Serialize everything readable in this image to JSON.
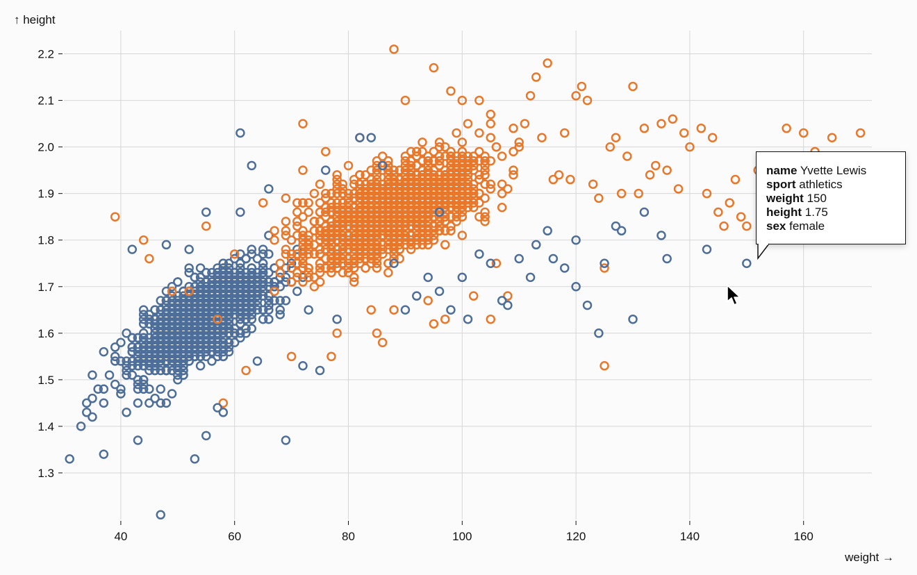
{
  "chart_data": {
    "type": "scatter",
    "xlabel": "weight →",
    "ylabel": "↑ height",
    "xlim": [
      30,
      172
    ],
    "ylim": [
      1.2,
      2.25
    ],
    "xticks": [
      40,
      60,
      80,
      100,
      120,
      140,
      160
    ],
    "yticks": [
      1.3,
      1.4,
      1.5,
      1.6,
      1.7,
      1.8,
      1.9,
      2.0,
      2.1,
      2.2
    ],
    "grid": true,
    "marker": "hollow-circle",
    "series": [
      {
        "color": "#4e6e9a",
        "points": [
          [
            31,
            1.33
          ],
          [
            33,
            1.4
          ],
          [
            34,
            1.43
          ],
          [
            35,
            1.42
          ],
          [
            34,
            1.45
          ],
          [
            35,
            1.46
          ],
          [
            35,
            1.51
          ],
          [
            36,
            1.48
          ],
          [
            37,
            1.45
          ],
          [
            37,
            1.48
          ],
          [
            37,
            1.34
          ],
          [
            39,
            1.49
          ],
          [
            39,
            1.54
          ],
          [
            40,
            1.47
          ],
          [
            41,
            1.43
          ],
          [
            42,
            1.78
          ],
          [
            43,
            1.37
          ],
          [
            43,
            1.45
          ],
          [
            44,
            1.48
          ],
          [
            45,
            1.45
          ],
          [
            46,
            1.46
          ],
          [
            47,
            1.45
          ],
          [
            48,
            1.45
          ],
          [
            49,
            1.47
          ],
          [
            48,
            1.79
          ],
          [
            52,
            1.78
          ],
          [
            53,
            1.33
          ],
          [
            55,
            1.38
          ],
          [
            55,
            1.86
          ],
          [
            57,
            1.44
          ],
          [
            58,
            1.43
          ],
          [
            61,
            1.86
          ],
          [
            61,
            2.03
          ],
          [
            63,
            1.96
          ],
          [
            63,
            1.71
          ],
          [
            64,
            1.54
          ],
          [
            66,
            1.91
          ],
          [
            69,
            1.37
          ],
          [
            47,
            1.21
          ],
          [
            72,
            1.53
          ],
          [
            73,
            1.65
          ],
          [
            75,
            1.52
          ],
          [
            76,
            1.95
          ],
          [
            78,
            1.63
          ],
          [
            82,
            2.02
          ],
          [
            84,
            2.02
          ],
          [
            86,
            1.96
          ],
          [
            88,
            1.75
          ],
          [
            90,
            1.65
          ],
          [
            92,
            1.68
          ],
          [
            94,
            1.72
          ],
          [
            96,
            1.86
          ],
          [
            96,
            1.69
          ],
          [
            98,
            1.65
          ],
          [
            100,
            1.72
          ],
          [
            101,
            1.63
          ],
          [
            103,
            1.77
          ],
          [
            105,
            1.75
          ],
          [
            107,
            1.67
          ],
          [
            108,
            1.66
          ],
          [
            110,
            1.76
          ],
          [
            112,
            1.72
          ],
          [
            113,
            1.79
          ],
          [
            115,
            1.82
          ],
          [
            116,
            1.76
          ],
          [
            118,
            1.74
          ],
          [
            120,
            1.7
          ],
          [
            120,
            1.8
          ],
          [
            122,
            1.66
          ],
          [
            124,
            1.6
          ],
          [
            125,
            1.75
          ],
          [
            127,
            1.83
          ],
          [
            128,
            1.82
          ],
          [
            130,
            1.63
          ],
          [
            132,
            1.86
          ],
          [
            135,
            1.81
          ],
          [
            136,
            1.76
          ],
          [
            143,
            1.78
          ],
          [
            150,
            1.75
          ]
        ]
      },
      {
        "color": "#e8772a",
        "points": [
          [
            39,
            1.85
          ],
          [
            44,
            1.8
          ],
          [
            45,
            1.76
          ],
          [
            49,
            1.69
          ],
          [
            52,
            1.69
          ],
          [
            55,
            1.83
          ],
          [
            57,
            1.63
          ],
          [
            58,
            1.45
          ],
          [
            60,
            1.77
          ],
          [
            62,
            1.52
          ],
          [
            65,
            1.88
          ],
          [
            67,
            1.82
          ],
          [
            70,
            1.55
          ],
          [
            72,
            1.95
          ],
          [
            72,
            2.05
          ],
          [
            74,
            1.9
          ],
          [
            76,
            1.99
          ],
          [
            77,
            1.55
          ],
          [
            78,
            1.6
          ],
          [
            80,
            1.96
          ],
          [
            82,
            2.02
          ],
          [
            84,
            1.65
          ],
          [
            85,
            1.6
          ],
          [
            86,
            1.58
          ],
          [
            88,
            2.21
          ],
          [
            88,
            1.65
          ],
          [
            90,
            2.1
          ],
          [
            92,
            1.98
          ],
          [
            94,
            1.67
          ],
          [
            95,
            1.62
          ],
          [
            95,
            2.17
          ],
          [
            96,
            1.96
          ],
          [
            97,
            1.63
          ],
          [
            98,
            2.12
          ],
          [
            99,
            1.88
          ],
          [
            100,
            2.1
          ],
          [
            101,
            2.05
          ],
          [
            102,
            1.68
          ],
          [
            103,
            2.1
          ],
          [
            104,
            1.95
          ],
          [
            105,
            1.63
          ],
          [
            106,
            1.75
          ],
          [
            107,
            1.9
          ],
          [
            108,
            1.68
          ],
          [
            110,
            2.0
          ],
          [
            111,
            2.05
          ],
          [
            112,
            2.11
          ],
          [
            113,
            2.15
          ],
          [
            114,
            2.02
          ],
          [
            115,
            2.18
          ],
          [
            116,
            1.93
          ],
          [
            117,
            1.94
          ],
          [
            118,
            2.03
          ],
          [
            119,
            1.93
          ],
          [
            120,
            2.11
          ],
          [
            121,
            2.13
          ],
          [
            122,
            2.1
          ],
          [
            123,
            1.92
          ],
          [
            124,
            1.89
          ],
          [
            125,
            1.53
          ],
          [
            125,
            1.74
          ],
          [
            126,
            2.0
          ],
          [
            127,
            2.02
          ],
          [
            128,
            1.9
          ],
          [
            129,
            1.98
          ],
          [
            130,
            2.13
          ],
          [
            131,
            1.9
          ],
          [
            132,
            2.04
          ],
          [
            133,
            1.94
          ],
          [
            134,
            1.96
          ],
          [
            135,
            2.05
          ],
          [
            136,
            1.95
          ],
          [
            137,
            2.06
          ],
          [
            138,
            1.91
          ],
          [
            139,
            2.03
          ],
          [
            140,
            2.0
          ],
          [
            142,
            2.04
          ],
          [
            143,
            1.9
          ],
          [
            144,
            2.02
          ],
          [
            145,
            1.86
          ],
          [
            146,
            1.83
          ],
          [
            147,
            1.88
          ],
          [
            148,
            1.93
          ],
          [
            149,
            1.85
          ],
          [
            150,
            1.83
          ],
          [
            152,
            1.95
          ],
          [
            153,
            1.94
          ],
          [
            155,
            1.97
          ],
          [
            156,
            1.96
          ],
          [
            157,
            2.04
          ],
          [
            159,
            1.97
          ],
          [
            160,
            2.03
          ],
          [
            162,
            1.99
          ],
          [
            165,
            2.02
          ],
          [
            170,
            2.03
          ]
        ]
      }
    ]
  },
  "tooltip": {
    "name_key": "name",
    "name_val": "Yvette Lewis",
    "sport_key": "sport",
    "sport_val": "athletics",
    "weight_key": "weight",
    "weight_val": "150",
    "height_key": "height",
    "height_val": "1.75",
    "sex_key": "sex",
    "sex_val": "female"
  }
}
